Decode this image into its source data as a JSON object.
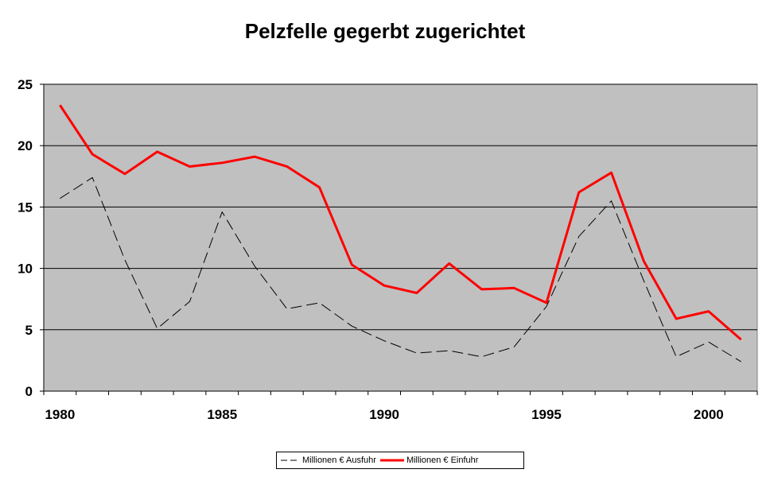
{
  "chart_data": {
    "type": "line",
    "title": "Pelzfelle gegerbt zugerichtet",
    "xlabel": "",
    "ylabel": "",
    "x": [
      1980,
      1981,
      1982,
      1983,
      1984,
      1985,
      1986,
      1987,
      1988,
      1989,
      1990,
      1991,
      1992,
      1993,
      1994,
      1995,
      1996,
      1997,
      1998,
      1999,
      2000,
      2001
    ],
    "xlim": [
      1979.5,
      2001.5
    ],
    "ylim": [
      0,
      25
    ],
    "x_tick_labels": [
      "1980",
      "1985",
      "1990",
      "1995",
      "2000"
    ],
    "y_tick_labels": [
      "0",
      "5",
      "10",
      "15",
      "20",
      "25"
    ],
    "grid": true,
    "legend_position": "bottom",
    "plot_background": "#c0c0c0",
    "series": [
      {
        "name": "Millionen € Ausfuhr",
        "color": "#000000",
        "style": "dashed",
        "values": [
          15.7,
          17.4,
          10.7,
          5.1,
          7.3,
          14.6,
          10.2,
          6.7,
          7.2,
          5.3,
          4.1,
          3.1,
          3.3,
          2.8,
          3.6,
          6.9,
          12.6,
          15.5,
          9.0,
          2.8,
          4.0,
          2.4
        ]
      },
      {
        "name": "Millionen € Einfuhr",
        "color": "#ff0000",
        "style": "solid",
        "values": [
          23.3,
          19.3,
          17.7,
          19.5,
          18.3,
          18.6,
          19.1,
          18.3,
          16.6,
          10.3,
          8.6,
          8.0,
          10.4,
          8.3,
          8.4,
          7.2,
          16.2,
          17.8,
          10.6,
          5.9,
          6.5,
          4.2
        ]
      }
    ]
  }
}
